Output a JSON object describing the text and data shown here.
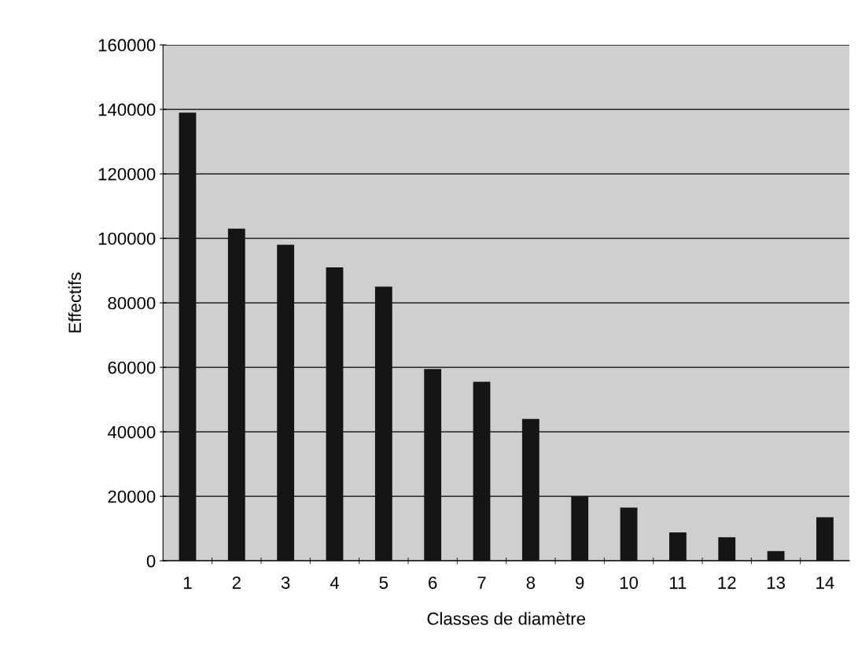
{
  "chart_data": {
    "type": "bar",
    "xlabel": "Classes de diamètre",
    "ylabel": "Effectifs",
    "categories": [
      "1",
      "2",
      "3",
      "4",
      "5",
      "6",
      "7",
      "8",
      "9",
      "10",
      "11",
      "12",
      "13",
      "14"
    ],
    "values": [
      139000,
      103000,
      98000,
      91000,
      85000,
      59500,
      55500,
      44000,
      20000,
      16500,
      8800,
      7300,
      3000,
      13500
    ],
    "color": "#151515",
    "ylim": [
      0,
      160000
    ],
    "yticks": [
      0,
      20000,
      40000,
      60000,
      80000,
      100000,
      120000,
      140000,
      160000
    ],
    "grid": "y",
    "legend": false
  }
}
